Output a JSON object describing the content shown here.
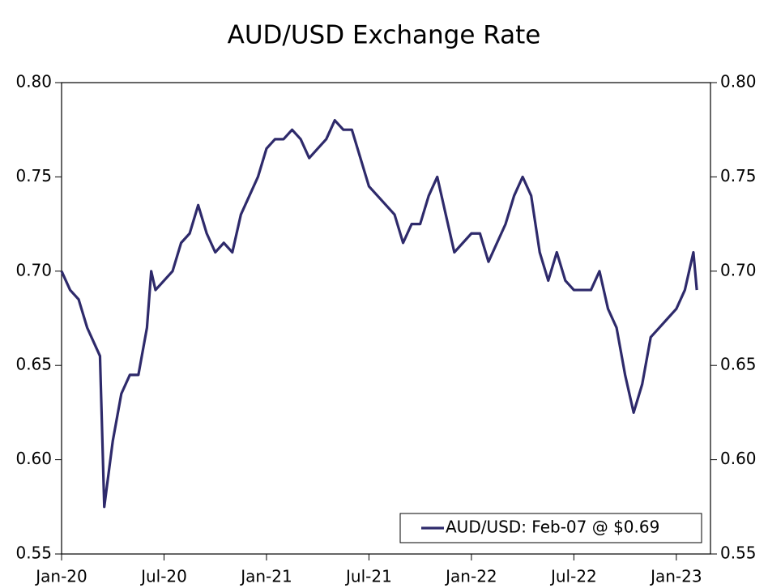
{
  "chart_data": {
    "type": "line",
    "title": "AUD/USD Exchange Rate",
    "x": [
      0,
      0.5,
      1,
      1.5,
      2,
      2.25,
      2.5,
      3,
      3.5,
      4,
      4.5,
      5,
      5.25,
      5.5,
      6,
      6.5,
      7,
      7.5,
      8,
      8.5,
      9,
      9.5,
      10,
      10.5,
      11,
      11.5,
      12,
      12.5,
      13,
      13.5,
      14,
      14.5,
      15,
      15.5,
      16,
      16.5,
      17,
      17.5,
      18,
      18.5,
      19,
      19.5,
      20,
      20.5,
      21,
      21.5,
      22,
      22.5,
      23,
      23.5,
      24,
      24.5,
      25,
      25.5,
      26,
      26.5,
      27,
      27.5,
      28,
      28.5,
      29,
      29.5,
      30,
      30.5,
      31,
      31.5,
      32,
      32.5,
      33,
      33.5,
      34,
      34.5,
      35,
      35.5,
      36,
      36.5,
      37,
      37.2
    ],
    "series": [
      {
        "name": "AUD/USD: Feb-07 @ $0.69",
        "color": "#2e2a6b",
        "values": [
          0.7,
          0.69,
          0.685,
          0.67,
          0.66,
          0.655,
          0.575,
          0.61,
          0.635,
          0.645,
          0.645,
          0.67,
          0.7,
          0.69,
          0.695,
          0.7,
          0.715,
          0.72,
          0.735,
          0.72,
          0.71,
          0.715,
          0.71,
          0.73,
          0.74,
          0.75,
          0.765,
          0.77,
          0.77,
          0.775,
          0.77,
          0.76,
          0.765,
          0.77,
          0.78,
          0.775,
          0.775,
          0.76,
          0.745,
          0.74,
          0.735,
          0.73,
          0.715,
          0.725,
          0.725,
          0.74,
          0.75,
          0.73,
          0.71,
          0.715,
          0.72,
          0.72,
          0.705,
          0.715,
          0.725,
          0.74,
          0.75,
          0.74,
          0.71,
          0.695,
          0.71,
          0.695,
          0.69,
          0.69,
          0.69,
          0.7,
          0.68,
          0.67,
          0.645,
          0.625,
          0.64,
          0.665,
          0.67,
          0.675,
          0.68,
          0.69,
          0.71,
          0.69
        ]
      }
    ],
    "xlim": [
      0,
      38
    ],
    "xticks": [
      {
        "value": 0,
        "label": "Jan-20"
      },
      {
        "value": 6,
        "label": "Jul-20"
      },
      {
        "value": 12,
        "label": "Jan-21"
      },
      {
        "value": 18,
        "label": "Jul-21"
      },
      {
        "value": 24,
        "label": "Jan-22"
      },
      {
        "value": 30,
        "label": "Jul-22"
      },
      {
        "value": 36,
        "label": "Jan-23"
      }
    ],
    "ylim": [
      0.55,
      0.8
    ],
    "yticks": [
      {
        "value": 0.55,
        "label": "0.55"
      },
      {
        "value": 0.6,
        "label": "0.60"
      },
      {
        "value": 0.65,
        "label": "0.65"
      },
      {
        "value": 0.7,
        "label": "0.70"
      },
      {
        "value": 0.75,
        "label": "0.75"
      },
      {
        "value": 0.8,
        "label": "0.80"
      }
    ],
    "y2lim": [
      0.55,
      0.8
    ],
    "y2ticks": [
      {
        "value": 0.55,
        "label": "0.55"
      },
      {
        "value": 0.6,
        "label": "0.60"
      },
      {
        "value": 0.65,
        "label": "0.65"
      },
      {
        "value": 0.7,
        "label": "0.70"
      },
      {
        "value": 0.75,
        "label": "0.75"
      },
      {
        "value": 0.8,
        "label": "0.80"
      }
    ],
    "grid": false,
    "legend": "lower right"
  }
}
